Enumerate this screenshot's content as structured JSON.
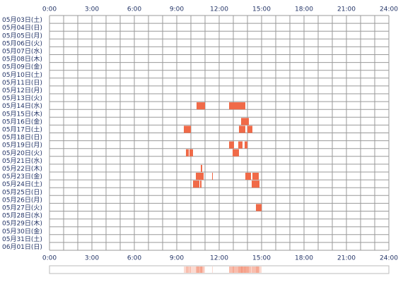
{
  "chart_data": {
    "type": "activity",
    "xlim": [
      0,
      24
    ],
    "xticks": [
      {
        "value": 0,
        "label": "0:00"
      },
      {
        "value": 3,
        "label": "3:00"
      },
      {
        "value": 6,
        "label": "6:00"
      },
      {
        "value": 9,
        "label": "9:00"
      },
      {
        "value": 12,
        "label": "12:00"
      },
      {
        "value": 15,
        "label": "15:00"
      },
      {
        "value": 18,
        "label": "18:00"
      },
      {
        "value": 21,
        "label": "21:00"
      },
      {
        "value": 24,
        "label": "24:00"
      }
    ],
    "xgrid": [
      0,
      1,
      2,
      3,
      4,
      5,
      6,
      7,
      8,
      9,
      10,
      11,
      12,
      13,
      14,
      15,
      16,
      17,
      18,
      19,
      20,
      21,
      22,
      23,
      24
    ],
    "color": "#f06a48",
    "categories": [
      "05月03日(土)",
      "05月04日(日)",
      "05月05日(月)",
      "05月06日(火)",
      "05月07日(水)",
      "05月08日(木)",
      "05月09日(金)",
      "05月10日(土)",
      "05月11日(日)",
      "05月12日(月)",
      "05月13日(火)",
      "05月14日(水)",
      "05月15日(木)",
      "05月16日(金)",
      "05月17日(土)",
      "05月18日(日)",
      "05月19日(月)",
      "05月20日(火)",
      "05月21日(水)",
      "05月22日(木)",
      "05月23日(金)",
      "05月24日(土)",
      "05月25日(日)",
      "05月26日(月)",
      "05月27日(火)",
      "05月28日(水)",
      "05月29日(木)",
      "05月30日(金)",
      "05月31日(土)",
      "06月01日(日)"
    ],
    "intervals": [
      [],
      [],
      [],
      [],
      [],
      [],
      [],
      [],
      [],
      [],
      [],
      [
        [
          10.4,
          11.0
        ],
        [
          12.7,
          13.85
        ]
      ],
      [],
      [
        [
          13.55,
          14.1
        ]
      ],
      [
        [
          9.5,
          10.0
        ],
        [
          13.4,
          13.85
        ],
        [
          14.0,
          14.35
        ]
      ],
      [],
      [
        [
          12.7,
          13.05
        ],
        [
          13.35,
          13.65
        ],
        [
          13.8,
          14.0
        ]
      ],
      [
        [
          9.65,
          9.85
        ],
        [
          9.9,
          10.15
        ],
        [
          12.95,
          13.4
        ]
      ],
      [],
      [
        [
          10.7,
          10.8
        ]
      ],
      [
        [
          10.35,
          10.9
        ],
        [
          11.5,
          11.55
        ],
        [
          13.85,
          14.25
        ],
        [
          14.35,
          14.8
        ]
      ],
      [
        [
          10.15,
          10.6
        ],
        [
          10.65,
          10.75
        ],
        [
          14.3,
          14.85
        ]
      ],
      [],
      [],
      [
        [
          14.6,
          15.0
        ]
      ],
      [],
      [],
      [],
      [],
      []
    ]
  }
}
